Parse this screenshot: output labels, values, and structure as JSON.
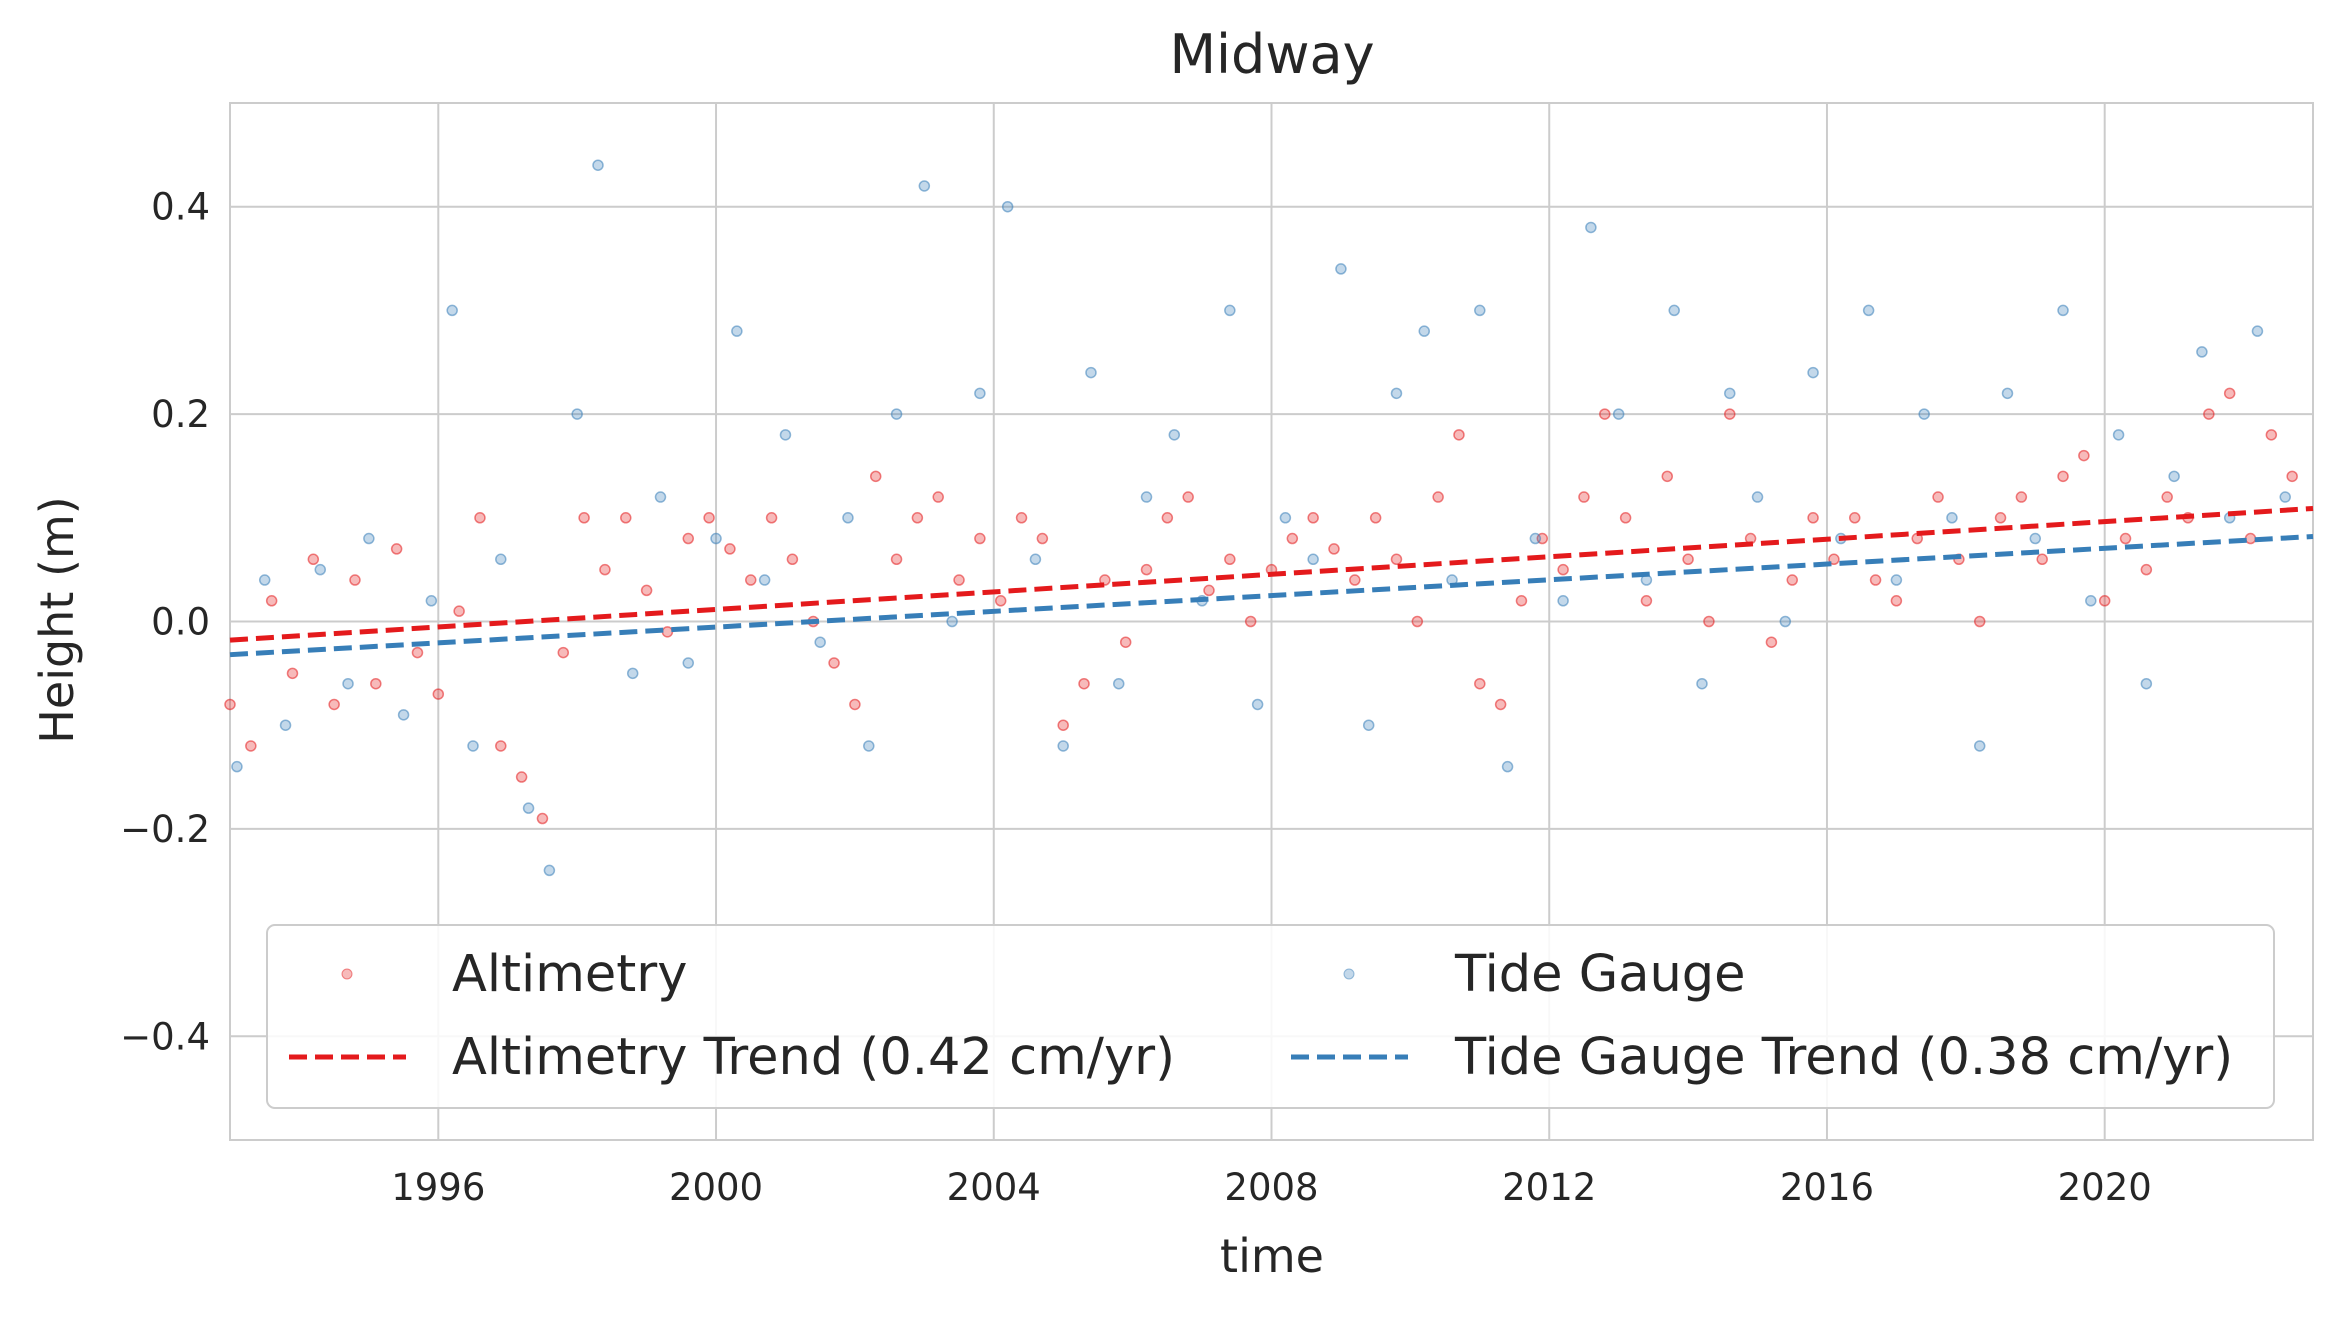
{
  "chart_data": {
    "type": "scatter",
    "title": "Midway",
    "xlabel": "time",
    "ylabel": "Height (m)",
    "xlim": [
      1993.0,
      2023.0
    ],
    "ylim": [
      -0.5,
      0.5
    ],
    "x_ticks": [
      1996,
      2000,
      2004,
      2008,
      2012,
      2016,
      2020
    ],
    "x_tick_labels": [
      "1996",
      "2000",
      "2004",
      "2008",
      "2012",
      "2016",
      "2020"
    ],
    "y_ticks": [
      -0.4,
      -0.2,
      0.0,
      0.2,
      0.4
    ],
    "y_tick_labels": [
      "−0.4",
      "−0.2",
      "0.0",
      "0.2",
      "0.4"
    ],
    "grid": true,
    "legend": {
      "placement": "lower-center",
      "columns": 2
    },
    "colors": {
      "altimetry": "#e41a1c",
      "tide_gauge": "#377eb8",
      "grid": "#cccccc",
      "frame": "#cccccc"
    },
    "series": [
      {
        "name": "Altimetry",
        "kind": "scatter",
        "color": "#e41a1c",
        "x": [
          1993.0,
          1993.3,
          1993.6,
          1993.9,
          1994.2,
          1994.5,
          1994.8,
          1995.1,
          1995.4,
          1995.7,
          1996.0,
          1996.3,
          1996.6,
          1996.9,
          1997.2,
          1997.5,
          1997.8,
          1998.1,
          1998.4,
          1998.7,
          1999.0,
          1999.3,
          1999.6,
          1999.9,
          2000.2,
          2000.5,
          2000.8,
          2001.1,
          2001.4,
          2001.7,
          2002.0,
          2002.3,
          2002.6,
          2002.9,
          2003.2,
          2003.5,
          2003.8,
          2004.1,
          2004.4,
          2004.7,
          2005.0,
          2005.3,
          2005.6,
          2005.9,
          2006.2,
          2006.5,
          2006.8,
          2007.1,
          2007.4,
          2007.7,
          2008.0,
          2008.3,
          2008.6,
          2008.9,
          2009.2,
          2009.5,
          2009.8,
          2010.1,
          2010.4,
          2010.7,
          2011.0,
          2011.3,
          2011.6,
          2011.9,
          2012.2,
          2012.5,
          2012.8,
          2013.1,
          2013.4,
          2013.7,
          2014.0,
          2014.3,
          2014.6,
          2014.9,
          2015.2,
          2015.5,
          2015.8,
          2016.1,
          2016.4,
          2016.7,
          2017.0,
          2017.3,
          2017.6,
          2017.9,
          2018.2,
          2018.5,
          2018.8,
          2019.1,
          2019.4,
          2019.7,
          2020.0,
          2020.3,
          2020.6,
          2020.9,
          2021.2,
          2021.5,
          2021.8,
          2022.1,
          2022.4,
          2022.7
        ],
        "y": [
          -0.08,
          -0.12,
          0.02,
          -0.05,
          0.06,
          -0.08,
          0.04,
          -0.06,
          0.07,
          -0.03,
          -0.07,
          0.01,
          0.1,
          -0.12,
          -0.15,
          -0.19,
          -0.03,
          0.1,
          0.05,
          0.1,
          0.03,
          -0.01,
          0.08,
          0.1,
          0.07,
          0.04,
          0.1,
          0.06,
          0.0,
          -0.04,
          -0.08,
          0.14,
          0.06,
          0.1,
          0.12,
          0.04,
          0.08,
          0.02,
          0.1,
          0.08,
          -0.1,
          -0.06,
          0.04,
          -0.02,
          0.05,
          0.1,
          0.12,
          0.03,
          0.06,
          0.0,
          0.05,
          0.08,
          0.1,
          0.07,
          0.04,
          0.1,
          0.06,
          0.0,
          0.12,
          0.18,
          -0.06,
          -0.08,
          0.02,
          0.08,
          0.05,
          0.12,
          0.2,
          0.1,
          0.02,
          0.14,
          0.06,
          0.0,
          0.2,
          0.08,
          -0.02,
          0.04,
          0.1,
          0.06,
          0.1,
          0.04,
          0.02,
          0.08,
          0.12,
          0.06,
          0.0,
          0.1,
          0.12,
          0.06,
          0.14,
          0.16,
          0.02,
          0.08,
          0.05,
          0.12,
          0.1,
          0.2,
          0.22,
          0.08,
          0.18,
          0.14
        ]
      },
      {
        "name": "Tide Gauge",
        "kind": "scatter",
        "color": "#377eb8",
        "x": [
          1993.1,
          1993.5,
          1993.8,
          1994.3,
          1994.7,
          1995.0,
          1995.5,
          1995.9,
          1996.2,
          1996.5,
          1996.9,
          1997.3,
          1997.6,
          1998.0,
          1998.3,
          1998.8,
          1999.2,
          1999.6,
          2000.0,
          2000.3,
          2000.7,
          2001.0,
          2001.5,
          2001.9,
          2002.2,
          2002.6,
          2003.0,
          2003.4,
          2003.8,
          2004.2,
          2004.6,
          2005.0,
          2005.4,
          2005.8,
          2006.2,
          2006.6,
          2007.0,
          2007.4,
          2007.8,
          2008.2,
          2008.6,
          2009.0,
          2009.4,
          2009.8,
          2010.2,
          2010.6,
          2011.0,
          2011.4,
          2011.8,
          2012.2,
          2012.6,
          2013.0,
          2013.4,
          2013.8,
          2014.2,
          2014.6,
          2015.0,
          2015.4,
          2015.8,
          2016.2,
          2016.6,
          2017.0,
          2017.4,
          2017.8,
          2018.2,
          2018.6,
          2019.0,
          2019.4,
          2019.8,
          2020.2,
          2020.6,
          2021.0,
          2021.4,
          2021.8,
          2022.2,
          2022.6
        ],
        "y": [
          -0.14,
          0.04,
          -0.1,
          0.05,
          -0.06,
          0.08,
          -0.09,
          0.02,
          0.3,
          -0.12,
          0.06,
          -0.18,
          -0.24,
          0.2,
          0.44,
          -0.05,
          0.12,
          -0.04,
          0.08,
          0.28,
          0.04,
          0.18,
          -0.02,
          0.1,
          -0.12,
          0.2,
          0.42,
          0.0,
          0.22,
          0.4,
          0.06,
          -0.12,
          0.24,
          -0.06,
          0.12,
          0.18,
          0.02,
          0.3,
          -0.08,
          0.1,
          0.06,
          0.34,
          -0.1,
          0.22,
          0.28,
          0.04,
          0.3,
          -0.14,
          0.08,
          0.02,
          0.38,
          0.2,
          0.04,
          0.3,
          -0.06,
          0.22,
          0.12,
          0.0,
          0.24,
          0.08,
          0.3,
          0.04,
          0.2,
          0.1,
          -0.12,
          0.22,
          0.08,
          0.3,
          0.02,
          0.18,
          -0.06,
          0.14,
          0.26,
          0.1,
          0.28,
          0.12
        ]
      },
      {
        "name": "Altimetry Trend (0.42 cm/yr)",
        "kind": "line",
        "style": "dashed",
        "color": "#e41a1c",
        "x": [
          1993.0,
          2023.0
        ],
        "y": [
          -0.018,
          0.109
        ]
      },
      {
        "name": "Tide Gauge Trend (0.38 cm/yr)",
        "kind": "line",
        "style": "dashed",
        "color": "#377eb8",
        "x": [
          1993.0,
          2023.0
        ],
        "y": [
          -0.032,
          0.082
        ]
      }
    ]
  }
}
